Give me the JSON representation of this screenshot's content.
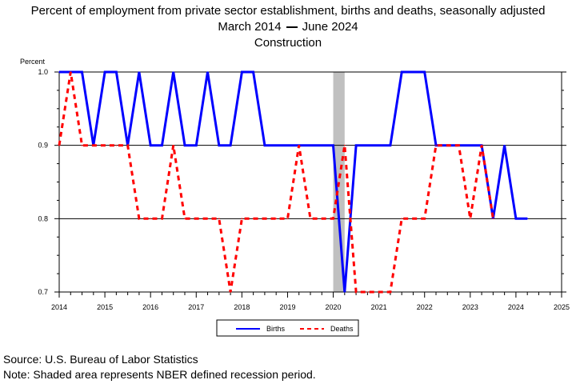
{
  "header": {
    "title": "Percent of employment from private sector establishment, births and deaths, seasonally adjusted",
    "period_start": "March 2014",
    "period_end": "June 2024",
    "subtitle": "Construction"
  },
  "footer": {
    "source": "Source: U.S. Bureau of Labor Statistics",
    "note": "Note: Shaded area represents NBER defined recession period."
  },
  "chart_data": {
    "type": "line",
    "ylabel": "Percent",
    "xlabel": "",
    "xlim": [
      2014,
      2025
    ],
    "ylim": [
      0.7,
      1.0
    ],
    "yticks": [
      "0.7",
      "0.8",
      "0.9",
      "1.0"
    ],
    "xticks": [
      "2014",
      "2015",
      "2016",
      "2017",
      "2018",
      "2019",
      "2020",
      "2021",
      "2022",
      "2023",
      "2024",
      "2025"
    ],
    "gridlines": [
      0.8,
      0.9,
      1.0
    ],
    "grid": true,
    "legend_position": "bottom-center",
    "recession": {
      "start": 2020.0,
      "end": 2020.25,
      "color": "#c0c0c0"
    },
    "series": [
      {
        "name": "Births",
        "color": "#0000ff",
        "style": "solid",
        "x": [
          2014.0,
          2014.25,
          2014.5,
          2014.75,
          2015.0,
          2015.25,
          2015.5,
          2015.75,
          2016.0,
          2016.25,
          2016.5,
          2016.75,
          2017.0,
          2017.25,
          2017.5,
          2017.75,
          2018.0,
          2018.25,
          2018.5,
          2018.75,
          2019.0,
          2019.25,
          2019.5,
          2019.75,
          2020.0,
          2020.25,
          2020.5,
          2020.75,
          2021.0,
          2021.25,
          2021.5,
          2021.75,
          2022.0,
          2022.25,
          2022.5,
          2022.75,
          2023.0,
          2023.25,
          2023.5,
          2023.75,
          2024.0,
          2024.25
        ],
        "values": [
          1.0,
          1.0,
          1.0,
          0.9,
          1.0,
          1.0,
          0.9,
          1.0,
          0.9,
          0.9,
          1.0,
          0.9,
          0.9,
          1.0,
          0.9,
          0.9,
          1.0,
          1.0,
          0.9,
          0.9,
          0.9,
          0.9,
          0.9,
          0.9,
          0.9,
          0.7,
          0.9,
          0.9,
          0.9,
          0.9,
          1.0,
          1.0,
          1.0,
          0.9,
          0.9,
          0.9,
          0.9,
          0.9,
          0.8,
          0.9,
          0.8,
          0.8
        ]
      },
      {
        "name": "Deaths",
        "color": "#ff0000",
        "style": "dashed",
        "x": [
          2014.0,
          2014.25,
          2014.5,
          2014.75,
          2015.0,
          2015.25,
          2015.5,
          2015.75,
          2016.0,
          2016.25,
          2016.5,
          2016.75,
          2017.0,
          2017.25,
          2017.5,
          2017.75,
          2018.0,
          2018.25,
          2018.5,
          2018.75,
          2019.0,
          2019.25,
          2019.5,
          2019.75,
          2020.0,
          2020.25,
          2020.5,
          2020.75,
          2021.0,
          2021.25,
          2021.5,
          2021.75,
          2022.0,
          2022.25,
          2022.5,
          2022.75,
          2023.0,
          2023.25,
          2023.5
        ],
        "values": [
          0.9,
          1.0,
          0.9,
          0.9,
          0.9,
          0.9,
          0.9,
          0.8,
          0.8,
          0.8,
          0.9,
          0.8,
          0.8,
          0.8,
          0.8,
          0.7,
          0.8,
          0.8,
          0.8,
          0.8,
          0.8,
          0.9,
          0.8,
          0.8,
          0.8,
          0.9,
          0.7,
          0.7,
          0.7,
          0.7,
          0.8,
          0.8,
          0.8,
          0.9,
          0.9,
          0.9,
          0.8,
          0.9,
          0.8
        ]
      }
    ]
  }
}
